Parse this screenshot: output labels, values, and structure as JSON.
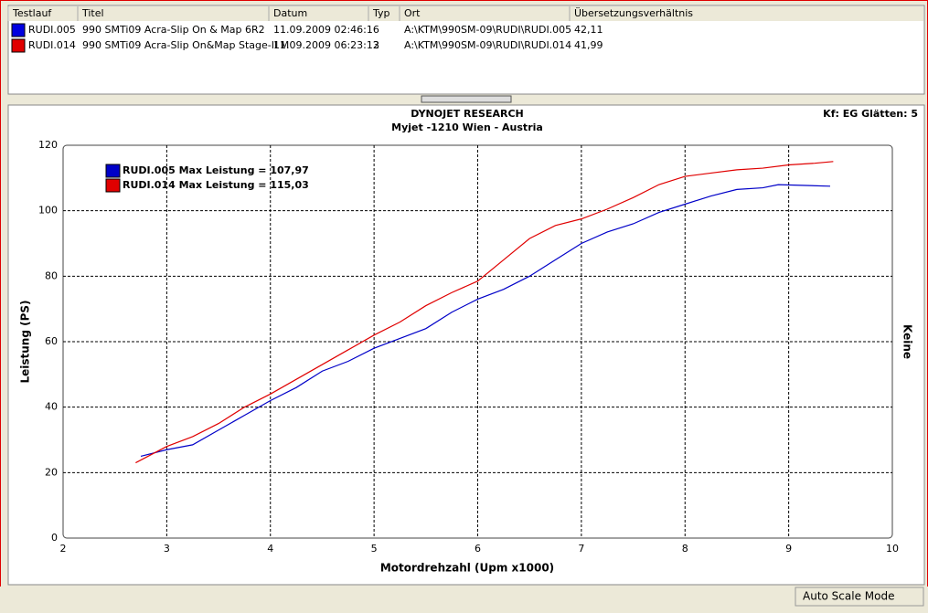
{
  "table": {
    "columns": [
      "Testlauf",
      "Titel",
      "Datum",
      "Typ",
      "Ort",
      "Übersetzungsverhältnis"
    ],
    "rows": [
      [
        "RUDI.005",
        "990 SMTi09  Acra-Slip On & Map 6R2",
        "11.09.2009 02:46:16",
        "",
        "A:\\KTM\\990SM-09\\RUDI\\RUDI.005",
        "42,11"
      ],
      [
        "RUDI.014",
        "990 SMTi09 Acra-Slip On&Map Stage-II M",
        "11.09.2009 06:23:12",
        "3",
        "A:\\KTM\\990SM-09\\RUDI\\RUDI.014",
        "41,99"
      ]
    ]
  },
  "chart_data": {
    "type": "line",
    "title": "DYNOJET RESEARCH",
    "subtitle": "Myjet -1210 Wien - Austria",
    "annotation": "Kf: EG  Glätten: 5",
    "x_label": "Motordrehzahl (Upm x1000)",
    "y_label": "Leistung (PS)",
    "y2_label": "Keine",
    "xlim": [
      2,
      10
    ],
    "xticks": [
      2,
      3,
      4,
      5,
      6,
      7,
      8,
      9,
      10
    ],
    "ylim": [
      0,
      120
    ],
    "yticks": [
      0,
      20,
      40,
      60,
      80,
      100,
      120
    ],
    "grid": true,
    "series": [
      {
        "name": "RUDI.005 Max Leistung = 107,97",
        "color": "#0000c8",
        "x": [
          2.75,
          3.0,
          3.25,
          3.5,
          3.75,
          4.0,
          4.25,
          4.5,
          4.75,
          5.0,
          5.25,
          5.5,
          5.75,
          6.0,
          6.25,
          6.5,
          6.75,
          7.0,
          7.25,
          7.5,
          7.75,
          8.0,
          8.25,
          8.5,
          8.75,
          8.9,
          9.4
        ],
        "values": [
          25,
          27,
          28.5,
          33,
          37.5,
          42,
          46,
          51,
          54,
          58,
          61,
          64,
          69,
          73,
          76,
          80,
          85,
          90,
          93.5,
          96,
          99.5,
          102,
          104.5,
          106.5,
          107,
          107.97,
          107.5
        ]
      },
      {
        "name": "RUDI.014 Max Leistung = 115,03",
        "color": "#e00000",
        "x": [
          2.7,
          3.0,
          3.25,
          3.5,
          3.75,
          4.0,
          4.25,
          4.5,
          4.75,
          5.0,
          5.25,
          5.5,
          5.75,
          6.0,
          6.25,
          6.5,
          6.75,
          7.0,
          7.25,
          7.5,
          7.75,
          8.0,
          8.25,
          8.5,
          8.75,
          9.0,
          9.25,
          9.43
        ],
        "values": [
          23,
          28,
          31,
          35,
          40,
          44,
          48.5,
          53,
          57.5,
          62,
          66,
          71,
          75,
          78.5,
          85,
          91.5,
          95.5,
          97.5,
          100.5,
          104,
          108,
          110.5,
          111.5,
          112.5,
          113,
          114,
          114.5,
          115.03
        ]
      }
    ]
  },
  "status": "Auto Scale Mode"
}
